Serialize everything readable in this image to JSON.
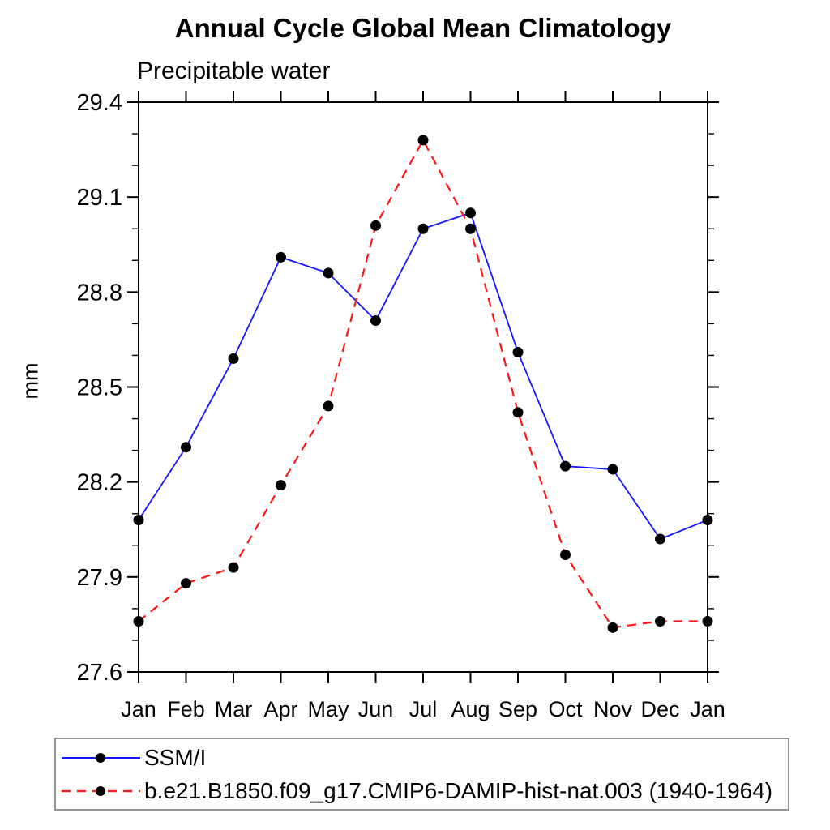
{
  "header": {
    "title": "Annual Cycle Global Mean Climatology",
    "subtitle": "Precipitable water"
  },
  "chart_data": {
    "type": "line",
    "title": "Annual Cycle Global Mean Climatology",
    "subtitle": "Precipitable water",
    "xlabel": "",
    "ylabel": "mm",
    "x_categories": [
      "Jan",
      "Feb",
      "Mar",
      "Apr",
      "May",
      "Jun",
      "Jul",
      "Aug",
      "Sep",
      "Oct",
      "Nov",
      "Dec",
      "Jan"
    ],
    "ylim": [
      27.6,
      29.4
    ],
    "y_major_ticks": [
      27.6,
      27.9,
      28.2,
      28.5,
      28.8,
      29.1,
      29.4
    ],
    "y_minor_step": 0.1,
    "grid": false,
    "frame": "box-with-outward-ticks",
    "legend_position": "bottom-left",
    "marker_color": "#000000",
    "series": [
      {
        "name": "SSM/I",
        "color": "#1515ff",
        "style": "solid",
        "marker": "circle",
        "values": [
          28.08,
          28.31,
          28.59,
          28.91,
          28.86,
          28.71,
          29.0,
          29.05,
          28.61,
          28.25,
          28.24,
          28.02,
          28.08
        ]
      },
      {
        "name": "b.e21.B1850.f09_g17.CMIP6-DAMIP-hist-nat.003 (1940-1964)",
        "color": "#ff1515",
        "style": "dashed",
        "marker": "circle",
        "values": [
          27.76,
          27.88,
          27.93,
          28.19,
          28.44,
          29.01,
          29.28,
          29.0,
          28.42,
          27.97,
          27.74,
          27.76,
          27.76
        ]
      }
    ]
  }
}
